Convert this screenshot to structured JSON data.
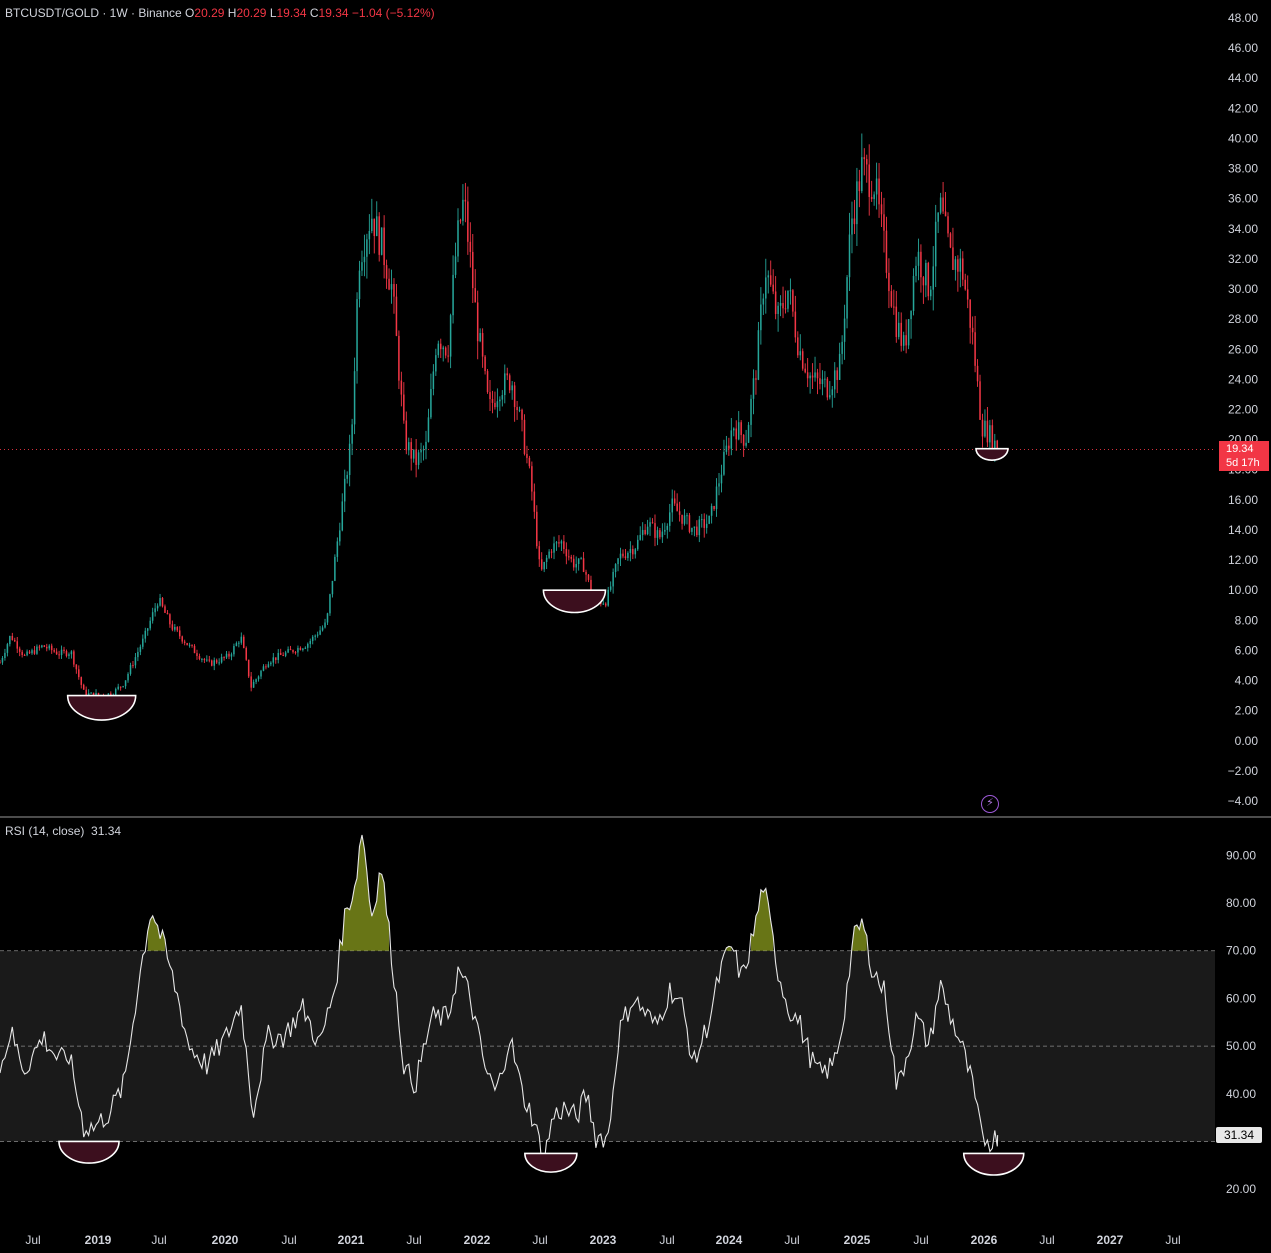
{
  "header": {
    "symbol": "BTCUSDT/GOLD · 1W · Binance",
    "open_label": "O",
    "open": "20.29",
    "high_label": "H",
    "high": "20.29",
    "low_label": "L",
    "low": "19.34",
    "close_label": "C",
    "close": "19.34",
    "change": "−1.04 (−5.12%)"
  },
  "price_tag": {
    "price": "19.34",
    "countdown": "5d 17h"
  },
  "rsi_legend": {
    "name": "RSI (14, close)",
    "value": "31.34"
  },
  "rsi_tag": "31.34",
  "colors": {
    "up": "#26a69a",
    "down": "#f23645",
    "rsi": "#e6e6e6",
    "band": "#1a1a1a",
    "highlight": "#3c0f1e",
    "overbought": "#7a8a1a"
  },
  "chart_data": [
    {
      "type": "candlestick",
      "title": "BTCUSDT/GOLD · 1W · Binance",
      "ylim": [
        -4,
        48
      ],
      "y_ticks": [
        "48.00",
        "46.00",
        "44.00",
        "42.00",
        "40.00",
        "38.00",
        "36.00",
        "34.00",
        "32.00",
        "30.00",
        "28.00",
        "26.00",
        "24.00",
        "22.00",
        "20.00",
        "18.00",
        "16.00",
        "14.00",
        "12.00",
        "10.00",
        "8.00",
        "6.00",
        "4.00",
        "2.00",
        "0.00",
        "−2.00",
        "−4.00"
      ],
      "x_ticks": [
        "Jul",
        "2019",
        "Jul",
        "2020",
        "Jul",
        "2021",
        "Jul",
        "2022",
        "Jul",
        "2023",
        "Jul",
        "2024",
        "Jul",
        "2025",
        "Jul",
        "2026",
        "Jul",
        "2027",
        "Jul"
      ],
      "xlim": [
        "2018-04-01",
        "2027-09-15"
      ],
      "last_price": 19.34,
      "path": [
        [
          "2018-04-01",
          5.2
        ],
        [
          "2018-05-01",
          7.0
        ],
        [
          "2018-06-10",
          5.6
        ],
        [
          "2018-08-01",
          6.3
        ],
        [
          "2018-09-15",
          5.8
        ],
        [
          "2018-10-20",
          5.9
        ],
        [
          "2018-11-25",
          3.2
        ],
        [
          "2018-12-20",
          3.0
        ],
        [
          "2019-02-15",
          3.1
        ],
        [
          "2019-03-20",
          3.9
        ],
        [
          "2019-05-15",
          6.8
        ],
        [
          "2019-06-25",
          9.4
        ],
        [
          "2019-08-01",
          7.6
        ],
        [
          "2019-09-20",
          6.3
        ],
        [
          "2019-11-15",
          5.1
        ],
        [
          "2020-01-10",
          5.6
        ],
        [
          "2020-02-15",
          6.9
        ],
        [
          "2020-03-15",
          3.6
        ],
        [
          "2020-05-01",
          5.3
        ],
        [
          "2020-07-01",
          5.9
        ],
        [
          "2020-08-20",
          6.4
        ],
        [
          "2020-10-15",
          7.8
        ],
        [
          "2020-11-25",
          15.0
        ],
        [
          "2020-12-25",
          20.0
        ],
        [
          "2021-01-15",
          32.0
        ],
        [
          "2021-02-20",
          35.0
        ],
        [
          "2021-03-20",
          33.0
        ],
        [
          "2021-04-20",
          30.0
        ],
        [
          "2021-05-25",
          20.0
        ],
        [
          "2021-06-25",
          18.5
        ],
        [
          "2021-07-25",
          19.5
        ],
        [
          "2021-08-25",
          27.0
        ],
        [
          "2021-09-25",
          26.0
        ],
        [
          "2021-10-20",
          33.0
        ],
        [
          "2021-11-10",
          36.0
        ],
        [
          "2021-12-15",
          28.0
        ],
        [
          "2022-01-20",
          22.0
        ],
        [
          "2022-02-20",
          23.5
        ],
        [
          "2022-03-25",
          24.0
        ],
        [
          "2022-04-25",
          20.5
        ],
        [
          "2022-05-20",
          17.0
        ],
        [
          "2022-06-15",
          11.0
        ],
        [
          "2022-07-15",
          12.8
        ],
        [
          "2022-08-15",
          13.2
        ],
        [
          "2022-09-15",
          11.8
        ],
        [
          "2022-10-15",
          11.7
        ],
        [
          "2022-11-15",
          9.2
        ],
        [
          "2022-12-20",
          9.3
        ],
        [
          "2023-01-25",
          12.2
        ],
        [
          "2023-03-15",
          13.0
        ],
        [
          "2023-04-15",
          14.5
        ],
        [
          "2023-05-20",
          13.5
        ],
        [
          "2023-06-25",
          15.6
        ],
        [
          "2023-08-25",
          14.0
        ],
        [
          "2023-10-10",
          14.6
        ],
        [
          "2023-11-10",
          17.8
        ],
        [
          "2023-12-15",
          21.0
        ],
        [
          "2024-01-20",
          20.0
        ],
        [
          "2024-02-20",
          25.0
        ],
        [
          "2024-03-15",
          31.5
        ],
        [
          "2024-04-20",
          28.0
        ],
        [
          "2024-05-20",
          30.0
        ],
        [
          "2024-06-20",
          26.0
        ],
        [
          "2024-07-25",
          24.0
        ],
        [
          "2024-09-10",
          23.5
        ],
        [
          "2024-10-15",
          25.0
        ],
        [
          "2024-11-15",
          34.5
        ],
        [
          "2024-12-15",
          38.0
        ],
        [
          "2025-01-20",
          37.0
        ],
        [
          "2025-02-15",
          33.0
        ],
        [
          "2025-03-20",
          28.0
        ],
        [
          "2025-04-15",
          26.0
        ],
        [
          "2025-05-20",
          32.5
        ],
        [
          "2025-06-25",
          30.0
        ],
        [
          "2025-07-25",
          35.5
        ],
        [
          "2025-08-25",
          32.0
        ],
        [
          "2025-09-25",
          31.5
        ],
        [
          "2025-10-25",
          27.0
        ],
        [
          "2025-11-20",
          21.0
        ],
        [
          "2025-12-15",
          20.3
        ],
        [
          "2026-01-05",
          19.34
        ]
      ]
    },
    {
      "type": "line",
      "title": "RSI (14, close)",
      "ylim": [
        15,
        97
      ],
      "y_ticks": [
        "90.00",
        "80.00",
        "70.00",
        "60.00",
        "50.00",
        "40.00",
        "20.00"
      ],
      "band": [
        30,
        70
      ],
      "last_value": 31.34,
      "series": [
        {
          "values": [
            [
              "2018-04-01",
              45
            ],
            [
              "2018-05-01",
              53
            ],
            [
              "2018-06-10",
              45
            ],
            [
              "2018-08-01",
              52
            ],
            [
              "2018-09-15",
              47
            ],
            [
              "2018-10-15",
              48
            ],
            [
              "2018-11-25",
              33
            ],
            [
              "2018-12-25",
              33
            ],
            [
              "2019-02-05",
              36
            ],
            [
              "2019-03-20",
              42
            ],
            [
              "2019-05-01",
              64
            ],
            [
              "2019-06-05",
              79
            ],
            [
              "2019-07-15",
              70
            ],
            [
              "2019-08-20",
              60
            ],
            [
              "2019-09-20",
              50
            ],
            [
              "2019-11-10",
              46
            ],
            [
              "2020-01-05",
              52
            ],
            [
              "2020-02-15",
              59
            ],
            [
              "2020-03-20",
              36
            ],
            [
              "2020-05-01",
              52
            ],
            [
              "2020-06-15",
              52
            ],
            [
              "2020-08-10",
              58
            ],
            [
              "2020-09-25",
              50
            ],
            [
              "2020-11-10",
              63
            ],
            [
              "2020-12-05",
              77
            ],
            [
              "2021-01-05",
              84
            ],
            [
              "2021-01-25",
              96
            ],
            [
              "2021-02-20",
              77
            ],
            [
              "2021-03-20",
              88
            ],
            [
              "2021-04-20",
              68
            ],
            [
              "2021-05-25",
              45
            ],
            [
              "2021-06-25",
              42
            ],
            [
              "2021-08-10",
              56
            ],
            [
              "2021-09-25",
              56
            ],
            [
              "2021-10-25",
              66
            ],
            [
              "2021-11-25",
              61
            ],
            [
              "2022-01-10",
              45
            ],
            [
              "2022-02-10",
              40
            ],
            [
              "2022-03-20",
              52
            ],
            [
              "2022-04-25",
              40
            ],
            [
              "2022-05-25",
              35
            ],
            [
              "2022-06-25",
              26
            ],
            [
              "2022-07-20",
              35
            ],
            [
              "2022-08-20",
              37
            ],
            [
              "2022-09-25",
              35
            ],
            [
              "2022-10-25",
              40
            ],
            [
              "2022-11-20",
              31
            ],
            [
              "2022-12-25",
              31
            ],
            [
              "2023-01-25",
              53
            ],
            [
              "2023-03-05",
              60
            ],
            [
              "2023-04-10",
              57
            ],
            [
              "2023-05-10",
              54
            ],
            [
              "2023-06-20",
              62
            ],
            [
              "2023-07-25",
              58
            ],
            [
              "2023-08-25",
              46
            ],
            [
              "2023-10-10",
              56
            ],
            [
              "2023-11-10",
              66
            ],
            [
              "2023-12-10",
              71
            ],
            [
              "2024-01-10",
              64
            ],
            [
              "2024-02-15",
              75
            ],
            [
              "2024-03-10",
              84
            ],
            [
              "2024-04-20",
              66
            ],
            [
              "2024-05-20",
              58
            ],
            [
              "2024-06-20",
              55
            ],
            [
              "2024-07-25",
              47
            ],
            [
              "2024-08-20",
              44
            ],
            [
              "2024-09-25",
              46
            ],
            [
              "2024-10-20",
              54
            ],
            [
              "2024-11-20",
              72
            ],
            [
              "2024-12-15",
              76
            ],
            [
              "2025-01-15",
              66
            ],
            [
              "2025-02-20",
              61
            ],
            [
              "2025-03-25",
              41
            ],
            [
              "2025-04-25",
              49
            ],
            [
              "2025-05-20",
              56
            ],
            [
              "2025-06-25",
              50
            ],
            [
              "2025-07-25",
              63
            ],
            [
              "2025-08-25",
              56
            ],
            [
              "2025-09-25",
              50
            ],
            [
              "2025-10-25",
              42
            ],
            [
              "2025-11-20",
              31
            ],
            [
              "2025-12-20",
              30
            ],
            [
              "2026-01-05",
              31.34
            ]
          ]
        }
      ]
    }
  ]
}
